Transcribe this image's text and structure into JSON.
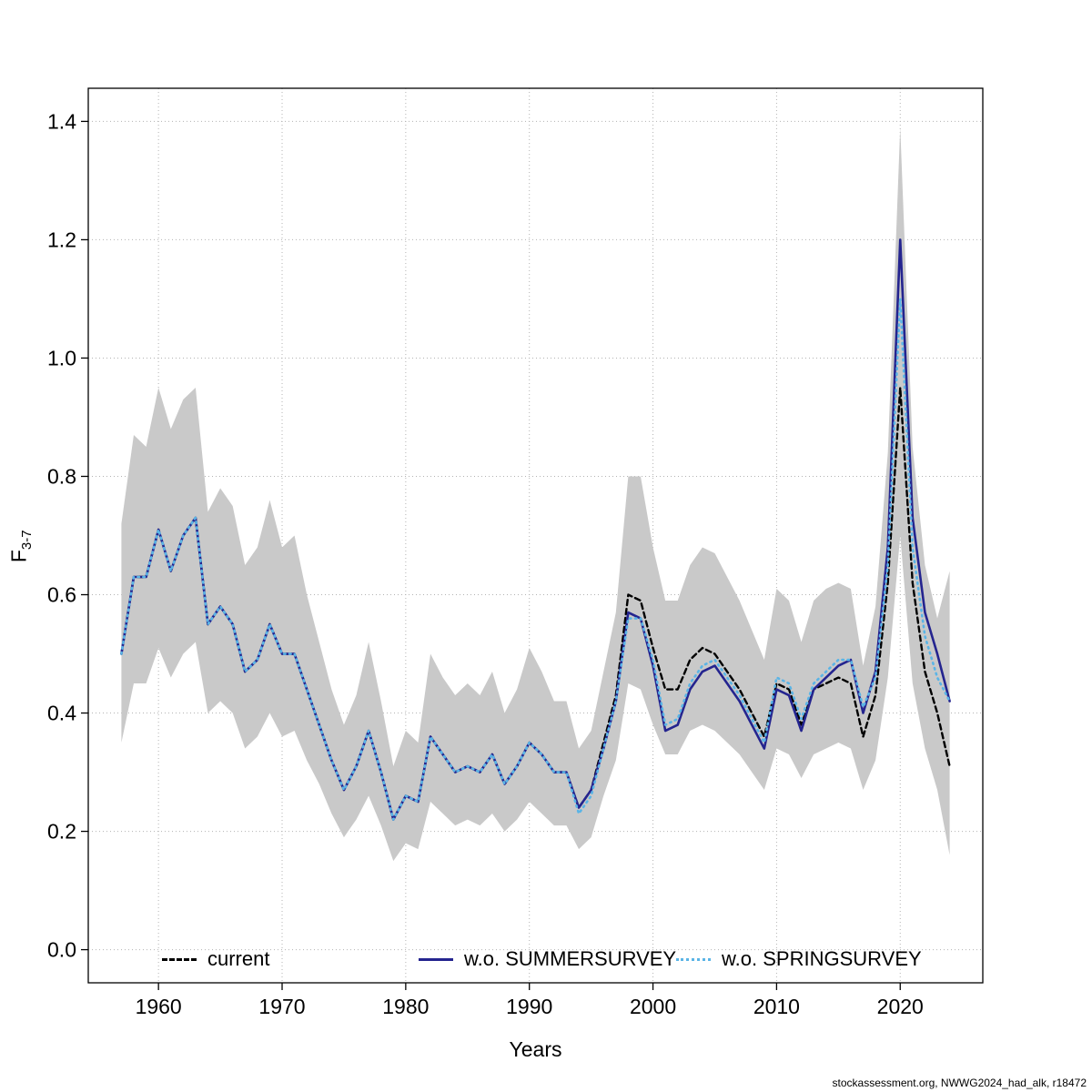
{
  "footer": {
    "text": "stockassessment.org, NWWG2024_had_alk, r18472"
  },
  "chart_data": {
    "type": "line",
    "title": "",
    "xlabel": "Years",
    "ylabel_main": "F",
    "ylabel_sub": "3-7",
    "xlim": [
      1957,
      2024
    ],
    "ylim": [
      0,
      1.4
    ],
    "grid": true,
    "legend_position": "bottom-inside",
    "xticks": [
      1960,
      1970,
      1980,
      1990,
      2000,
      2010,
      2020
    ],
    "ytick_values": [
      0,
      0.2,
      0.4,
      0.6,
      0.8,
      1.0,
      1.2,
      1.4
    ],
    "ytick_labels": [
      "0.0",
      "0.2",
      "0.4",
      "0.6",
      "0.8",
      "1.0",
      "1.2",
      "1.4"
    ],
    "colors": {
      "band": "#c9c9c9",
      "grid": "#b3b3b3",
      "axis": "#000000"
    },
    "years": [
      1957,
      1958,
      1959,
      1960,
      1961,
      1962,
      1963,
      1964,
      1965,
      1966,
      1967,
      1968,
      1969,
      1970,
      1971,
      1972,
      1973,
      1974,
      1975,
      1976,
      1977,
      1978,
      1979,
      1980,
      1981,
      1982,
      1983,
      1984,
      1985,
      1986,
      1987,
      1988,
      1989,
      1990,
      1991,
      1992,
      1993,
      1994,
      1995,
      1996,
      1997,
      1998,
      1999,
      2000,
      2001,
      2002,
      2003,
      2004,
      2005,
      2006,
      2007,
      2008,
      2009,
      2010,
      2011,
      2012,
      2013,
      2014,
      2015,
      2016,
      2017,
      2018,
      2019,
      2020,
      2021,
      2022,
      2023,
      2024
    ],
    "band": {
      "lower": [
        0.35,
        0.45,
        0.45,
        0.51,
        0.46,
        0.5,
        0.52,
        0.4,
        0.42,
        0.4,
        0.34,
        0.36,
        0.4,
        0.36,
        0.37,
        0.32,
        0.28,
        0.23,
        0.19,
        0.22,
        0.26,
        0.21,
        0.15,
        0.18,
        0.17,
        0.25,
        0.23,
        0.21,
        0.22,
        0.21,
        0.23,
        0.2,
        0.22,
        0.25,
        0.23,
        0.21,
        0.21,
        0.17,
        0.19,
        0.26,
        0.32,
        0.45,
        0.44,
        0.38,
        0.33,
        0.33,
        0.37,
        0.38,
        0.37,
        0.35,
        0.33,
        0.3,
        0.27,
        0.34,
        0.33,
        0.29,
        0.33,
        0.34,
        0.35,
        0.34,
        0.27,
        0.32,
        0.46,
        0.7,
        0.45,
        0.34,
        0.27,
        0.16
      ],
      "upper": [
        0.72,
        0.87,
        0.85,
        0.95,
        0.88,
        0.93,
        0.95,
        0.74,
        0.78,
        0.75,
        0.65,
        0.68,
        0.76,
        0.68,
        0.7,
        0.6,
        0.52,
        0.44,
        0.38,
        0.43,
        0.52,
        0.42,
        0.31,
        0.37,
        0.35,
        0.5,
        0.46,
        0.43,
        0.45,
        0.43,
        0.47,
        0.4,
        0.44,
        0.51,
        0.47,
        0.42,
        0.42,
        0.34,
        0.37,
        0.47,
        0.57,
        0.8,
        0.8,
        0.68,
        0.59,
        0.59,
        0.65,
        0.68,
        0.67,
        0.63,
        0.59,
        0.54,
        0.49,
        0.61,
        0.59,
        0.52,
        0.59,
        0.61,
        0.62,
        0.61,
        0.48,
        0.58,
        0.84,
        1.39,
        0.85,
        0.65,
        0.56,
        0.64
      ]
    },
    "series": [
      {
        "name": "current",
        "color": "#000000",
        "dash": "dashed",
        "width": 2.4,
        "values": [
          0.5,
          0.63,
          0.63,
          0.71,
          0.64,
          0.7,
          0.73,
          0.55,
          0.58,
          0.55,
          0.47,
          0.49,
          0.55,
          0.5,
          0.5,
          0.44,
          0.38,
          0.32,
          0.27,
          0.31,
          0.37,
          0.3,
          0.22,
          0.26,
          0.25,
          0.36,
          0.33,
          0.3,
          0.31,
          0.3,
          0.33,
          0.28,
          0.31,
          0.35,
          0.33,
          0.3,
          0.3,
          0.24,
          0.27,
          0.35,
          0.43,
          0.6,
          0.59,
          0.51,
          0.44,
          0.44,
          0.49,
          0.51,
          0.5,
          0.47,
          0.44,
          0.4,
          0.36,
          0.45,
          0.44,
          0.38,
          0.44,
          0.45,
          0.46,
          0.45,
          0.36,
          0.43,
          0.62,
          0.95,
          0.62,
          0.47,
          0.4,
          0.31
        ]
      },
      {
        "name": "w.o. SUMMERSURVEY",
        "color": "#24248f",
        "dash": "solid",
        "width": 2.6,
        "values": [
          0.5,
          0.63,
          0.63,
          0.71,
          0.64,
          0.7,
          0.73,
          0.55,
          0.58,
          0.55,
          0.47,
          0.49,
          0.55,
          0.5,
          0.5,
          0.44,
          0.38,
          0.32,
          0.27,
          0.31,
          0.37,
          0.3,
          0.22,
          0.26,
          0.25,
          0.36,
          0.33,
          0.3,
          0.31,
          0.3,
          0.33,
          0.28,
          0.31,
          0.35,
          0.33,
          0.3,
          0.3,
          0.24,
          0.27,
          0.34,
          0.42,
          0.57,
          0.56,
          0.48,
          0.37,
          0.38,
          0.44,
          0.47,
          0.48,
          0.45,
          0.42,
          0.38,
          0.34,
          0.44,
          0.43,
          0.37,
          0.44,
          0.46,
          0.48,
          0.49,
          0.4,
          0.47,
          0.68,
          1.2,
          0.73,
          0.57,
          0.5,
          0.42
        ]
      },
      {
        "name": "w.o. SPRINGSURVEY",
        "color": "#5ab4e6",
        "dash": "dotted",
        "width": 2.6,
        "values": [
          0.5,
          0.63,
          0.63,
          0.71,
          0.64,
          0.7,
          0.73,
          0.55,
          0.58,
          0.55,
          0.47,
          0.49,
          0.55,
          0.5,
          0.5,
          0.44,
          0.38,
          0.32,
          0.27,
          0.31,
          0.37,
          0.3,
          0.22,
          0.26,
          0.25,
          0.36,
          0.33,
          0.3,
          0.31,
          0.3,
          0.33,
          0.28,
          0.31,
          0.35,
          0.33,
          0.3,
          0.3,
          0.23,
          0.26,
          0.34,
          0.42,
          0.56,
          0.56,
          0.49,
          0.38,
          0.39,
          0.45,
          0.48,
          0.49,
          0.46,
          0.43,
          0.39,
          0.35,
          0.46,
          0.45,
          0.39,
          0.45,
          0.47,
          0.49,
          0.49,
          0.41,
          0.46,
          0.65,
          1.1,
          0.68,
          0.53,
          0.46,
          0.42
        ]
      }
    ]
  }
}
